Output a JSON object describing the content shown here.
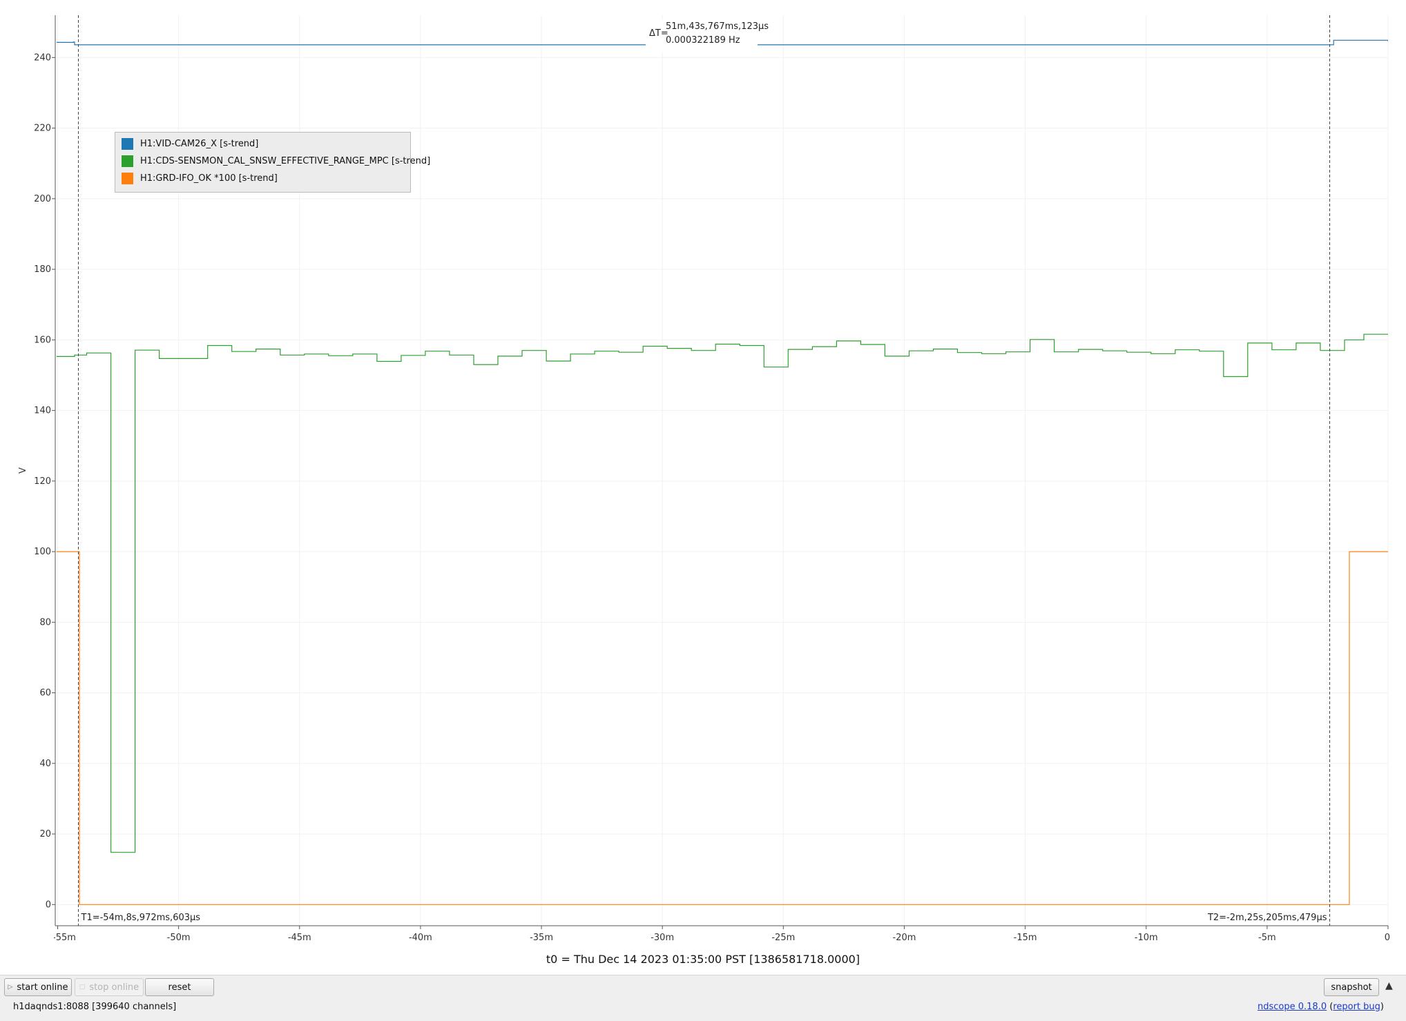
{
  "chart_data": {
    "type": "line",
    "ylabel": "V",
    "xlabel": "",
    "ylim": [
      -6,
      252
    ],
    "xlim": [
      -55.1,
      0
    ],
    "y_ticks": [
      0,
      20,
      40,
      60,
      80,
      100,
      120,
      140,
      160,
      180,
      200,
      220,
      240
    ],
    "x_ticks": [
      {
        "v": -55,
        "label": "-55m"
      },
      {
        "v": -50,
        "label": "-50m"
      },
      {
        "v": -45,
        "label": "-45m"
      },
      {
        "v": -40,
        "label": "-40m"
      },
      {
        "v": -35,
        "label": "-35m"
      },
      {
        "v": -30,
        "label": "-30m"
      },
      {
        "v": -25,
        "label": "-25m"
      },
      {
        "v": -20,
        "label": "-20m"
      },
      {
        "v": -15,
        "label": "-15m"
      },
      {
        "v": -10,
        "label": "-10m"
      },
      {
        "v": -5,
        "label": "-5m"
      },
      {
        "v": 0,
        "label": "0"
      }
    ],
    "grid": true,
    "legend_position": "top-left",
    "series": [
      {
        "name": "H1:VID-CAM26_X [s-trend]",
        "color": "#1f77b4",
        "x": [
          -55.1,
          -54.35,
          -54.3,
          -2.3,
          -2.25,
          0
        ],
        "y": [
          244.3,
          244.4,
          243.6,
          243.6,
          244.9,
          244.6
        ]
      },
      {
        "name": "H1:CDS-SENSMON_CAL_SNSW_EFFECTIVE_RANGE_MPC [s-trend]",
        "color": "#2ca02c",
        "x": [
          -55.1,
          -54.3,
          -53.8,
          -52.8,
          -51.8,
          -50.8,
          -48.8,
          -47.8,
          -46.8,
          -45.8,
          -44.8,
          -43.8,
          -42.8,
          -41.8,
          -40.8,
          -39.8,
          -38.8,
          -37.8,
          -36.8,
          -35.8,
          -34.8,
          -33.8,
          -32.8,
          -31.8,
          -30.8,
          -29.8,
          -28.8,
          -27.8,
          -26.8,
          -25.8,
          -24.8,
          -23.8,
          -22.8,
          -21.8,
          -20.8,
          -19.8,
          -18.8,
          -17.8,
          -16.8,
          -15.8,
          -14.8,
          -13.8,
          -12.8,
          -11.8,
          -10.8,
          -9.8,
          -8.8,
          -7.8,
          -6.8,
          -5.8,
          -4.8,
          -3.8,
          -2.8,
          -2.3,
          -1.8,
          -1.0,
          0
        ],
        "y": [
          155.3,
          155.7,
          156.3,
          14.8,
          157.1,
          154.7,
          158.4,
          156.7,
          157.4,
          155.7,
          156.0,
          155.5,
          156.0,
          153.9,
          155.6,
          156.8,
          155.7,
          153.0,
          155.4,
          157.0,
          154.0,
          156.0,
          156.8,
          156.5,
          158.2,
          157.6,
          157.0,
          158.8,
          158.4,
          152.3,
          157.3,
          158.1,
          159.7,
          158.7,
          155.4,
          156.9,
          157.4,
          156.4,
          156.1,
          156.6,
          160.1,
          156.6,
          157.3,
          156.9,
          156.5,
          156.1,
          157.2,
          156.8,
          149.6,
          159.1,
          157.2,
          159.1,
          157.0,
          157.0,
          160.0,
          161.6,
          161.6
        ]
      },
      {
        "name": "H1:GRD-IFO_OK *100 [s-trend]",
        "color": "#ff7f0e",
        "x": [
          -55.1,
          -54.1,
          -54.1,
          -1.6,
          -1.6,
          0
        ],
        "y": [
          100,
          100,
          0,
          0,
          100,
          100
        ]
      }
    ],
    "cursors": [
      {
        "x": -54.149,
        "label": "T1=-54m,8s,972ms,603μs"
      },
      {
        "x": -2.42,
        "label": "T2=-2m,25s,205ms,479μs"
      }
    ],
    "delta": {
      "prefix": "ΔT=",
      "time": "51m,43s,767ms,123μs",
      "freq": "0.000322189 Hz"
    }
  },
  "t0_label": "t0 = Thu Dec 14 2023 01:35:00 PST [1386581718.0000]",
  "toolbar": {
    "start_online": "start online",
    "stop_online": "stop online",
    "reset": "reset",
    "snapshot": "snapshot"
  },
  "status": {
    "server": "h1daqnds1:8088  [399640 channels]",
    "version": "ndscope 0.18.0",
    "report_bug": "report bug"
  }
}
